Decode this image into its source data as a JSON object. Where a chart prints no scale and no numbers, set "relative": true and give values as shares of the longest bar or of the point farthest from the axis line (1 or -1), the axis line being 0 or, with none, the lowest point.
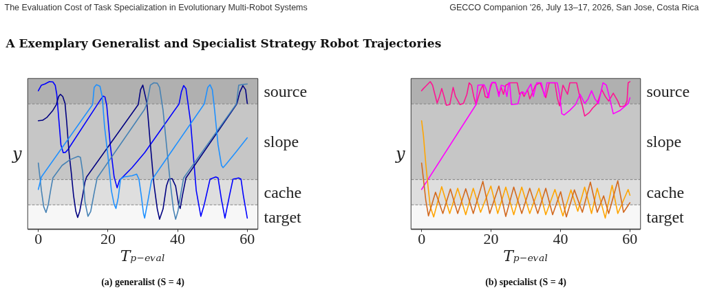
{
  "chart_data": [
    {
      "type": "line",
      "title": "(a) generalist (S = 4)",
      "xlabel": "Tₚ₋ₑᵥₐₗ",
      "ylabel": "y",
      "relative": true,
      "xlim": [
        -3,
        63
      ],
      "xticks": [
        0,
        20,
        40,
        60
      ],
      "annotations": [
        "The Evaluation Cost of Task Specialization in Evolutionary Multi-Robot Systems",
        "GECCO Companion '26, July 13–17, 2026, San Jose, Costa Rica",
        "A Exemplary Generalist and Specialist Strategy Robot Trajectories"
      ],
      "bands": [
        {
          "axis": "y",
          "from": 0.849,
          "to": 1.02,
          "label": "source",
          "color": "#b0b0b0"
        },
        {
          "axis": "y",
          "from": 0.336,
          "to": 0.849,
          "label": "slope",
          "color": "#c6c6c6"
        },
        {
          "axis": "y",
          "from": 0.165,
          "to": 0.336,
          "label": "cache",
          "color": "#dedede"
        },
        {
          "axis": "y",
          "from": 0,
          "to": 0.165,
          "label": "target",
          "color": "#f7f7f7"
        }
      ],
      "ref_lines": [
        {
          "axis": "y",
          "value": 0.849,
          "color": "#808080",
          "line_style": "dashed"
        },
        {
          "axis": "y",
          "value": 0.336,
          "color": "#808080",
          "line_style": "dashed"
        },
        {
          "axis": "y",
          "value": 0.165,
          "color": "#808080",
          "line_style": "dashed"
        }
      ],
      "series": [
        {
          "color": "#0000ff",
          "x": [
            0,
            0.89,
            1.88,
            2.54,
            3.2,
            4.18,
            4.84,
            5.3,
            5.83,
            6.49,
            7.15,
            7.81,
            8.46,
            18.02,
            18.68,
            19.14,
            19.66,
            20.65,
            21.77,
            22.63,
            23.29,
            24.28,
            26.91,
            30.53,
            35.16,
            40.42,
            41.07,
            41.73,
            42.39,
            43.71,
            45.35,
            46.67,
            47.66,
            49.31,
            50.96,
            51.61,
            52.6,
            53.59,
            54.91,
            55.9,
            57.54,
            58.2,
            58.86,
            60
          ],
          "values": [
            0.938,
            0.976,
            0.984,
            0.992,
            1.0,
            0.998,
            0.976,
            0.914,
            0.759,
            0.572,
            0.518,
            0.521,
            0.538,
            0.883,
            0.902,
            0.896,
            0.836,
            0.572,
            0.354,
            0.28,
            0.331,
            0.354,
            0.417,
            0.518,
            0.673,
            0.849,
            0.93,
            0.973,
            0.953,
            0.729,
            0.261,
            0.087,
            0.168,
            0.339,
            0.354,
            0.347,
            0.199,
            0.075,
            0.23,
            0.339,
            0.347,
            0.339,
            0.23,
            0.075
          ]
        },
        {
          "color": "#000080",
          "x": [
            0,
            1.22,
            2.54,
            4.18,
            5.17,
            5.83,
            6.36,
            7.02,
            7.67,
            8.14,
            8.79,
            9.45,
            10.11,
            10.77,
            11.3,
            11.89,
            12.75,
            13.41,
            13.87,
            28.69,
            29.35,
            30.01,
            31.19,
            32.18,
            33.18,
            34.16,
            34.82,
            35.82,
            36.79,
            37.45,
            38.44,
            39.43,
            40.28,
            40.74,
            41.4,
            42.39,
            57.01,
            57.87,
            58.73,
            59.52,
            60
          ],
          "values": [
            0.735,
            0.738,
            0.759,
            0.805,
            0.844,
            0.899,
            0.914,
            0.899,
            0.852,
            0.729,
            0.526,
            0.386,
            0.23,
            0.121,
            0.079,
            0.121,
            0.23,
            0.323,
            0.354,
            0.844,
            0.945,
            0.976,
            0.852,
            0.572,
            0.308,
            0.137,
            0.067,
            0.137,
            0.292,
            0.339,
            0.342,
            0.292,
            0.168,
            0.14,
            0.23,
            0.347,
            0.849,
            0.93,
            0.973,
            0.945,
            0.852
          ]
        },
        {
          "color": "#4682b4",
          "x": [
            0,
            0.89,
            1.55,
            2.21,
            2.87,
            3.52,
            4.18,
            6.82,
            9.12,
            11.43,
            12.09,
            12.75,
            13.41,
            14.26,
            15.05,
            16.04,
            16.9,
            30.53,
            31.19,
            32.18,
            33.18,
            34.16,
            34.82,
            35.82,
            36.79,
            37.78,
            38.77,
            39.43,
            40.09,
            40.74,
            41.73,
            56.88,
            57.54,
            58.86,
            60
          ],
          "values": [
            0.448,
            0.261,
            0.152,
            0.113,
            0.168,
            0.261,
            0.347,
            0.432,
            0.471,
            0.494,
            0.487,
            0.386,
            0.183,
            0.087,
            0.121,
            0.246,
            0.347,
            0.813,
            0.852,
            0.976,
            0.992,
            0.989,
            0.961,
            0.805,
            0.572,
            0.339,
            0.137,
            0.067,
            0.121,
            0.215,
            0.347,
            0.849,
            0.976,
            0.981,
            0.984
          ]
        },
        {
          "color": "#1e90ff",
          "x": [
            0,
            0.89,
            15.58,
            16.04,
            16.7,
            17.69,
            18.35,
            19.01,
            20,
            20.98,
            21.77,
            22.3,
            22.96,
            23.62,
            24.6,
            26.91,
            28.23,
            28.89,
            29.55,
            30.2,
            30.53,
            31.52,
            32.51,
            47.66,
            48.65,
            49.31,
            49.97,
            50.63,
            51.61,
            52.6,
            53.06,
            53.92,
            56.88,
            60
          ],
          "values": [
            0.269,
            0.354,
            0.844,
            0.961,
            0.979,
            0.969,
            0.899,
            0.697,
            0.494,
            0.261,
            0.168,
            0.14,
            0.215,
            0.339,
            0.354,
            0.362,
            0.373,
            0.339,
            0.23,
            0.106,
            0.075,
            0.199,
            0.331,
            0.849,
            0.961,
            0.979,
            0.945,
            0.805,
            0.572,
            0.432,
            0.417,
            0.44,
            0.526,
            0.619
          ]
        }
      ]
    },
    {
      "type": "line",
      "title": "(b) specialist (S = 4)",
      "xlabel": "Tₚ₋ₑᵥₐₗ",
      "ylabel": "y",
      "relative": true,
      "xlim": [
        -3,
        63
      ],
      "xticks": [
        0,
        20,
        40,
        60
      ],
      "bands": [
        {
          "axis": "y",
          "from": 0.849,
          "to": 1.02,
          "label": "source",
          "color": "#b0b0b0"
        },
        {
          "axis": "y",
          "from": 0.336,
          "to": 0.849,
          "label": "slope",
          "color": "#c6c6c6"
        },
        {
          "axis": "y",
          "from": 0.165,
          "to": 0.336,
          "label": "cache",
          "color": "#dedede"
        },
        {
          "axis": "y",
          "from": 0,
          "to": 0.165,
          "label": "target",
          "color": "#f7f7f7"
        }
      ],
      "ref_lines": [
        {
          "axis": "y",
          "value": 0.849,
          "color": "#808080",
          "line_style": "dashed"
        },
        {
          "axis": "y",
          "value": 0.336,
          "color": "#808080",
          "line_style": "dashed"
        },
        {
          "axis": "y",
          "value": 0.165,
          "color": "#808080",
          "line_style": "dashed"
        }
      ],
      "series": [
        {
          "color": "#ff1493",
          "x": [
            0,
            0.53,
            1.19,
            2.5,
            3.16,
            3.82,
            4.48,
            5.14,
            5.8,
            6.46,
            7.11,
            8.1,
            9.09,
            9.75,
            11.07,
            12.06,
            13.04,
            13.7,
            14.36,
            15.02,
            15.68,
            17,
            17.65,
            18.31,
            18.97,
            19.63,
            20.29,
            21.28,
            22.27,
            22.92,
            23.58,
            24.24,
            25.56,
            27.54,
            28.19,
            28.85,
            29.51,
            30.5,
            31.16,
            32.81,
            34.12,
            35.11,
            35.77,
            36.76,
            38.41,
            39.07,
            39.72,
            40.71,
            41.37,
            42.03,
            42.69,
            44.66,
            45.32,
            46.31,
            46.97,
            48.29,
            49.28,
            50.59,
            51.91,
            52.9,
            53.89,
            55.2,
            56.52,
            57.18,
            58.5,
            59.16,
            59.49,
            60
          ],
          "values": [
            0.938,
            0.953,
            0.969,
            1.0,
            0.976,
            0.914,
            0.855,
            0.899,
            0.953,
            0.899,
            0.84,
            0.844,
            0.961,
            0.899,
            0.844,
            0.852,
            0.914,
            0.992,
            0.976,
            0.899,
            0.844,
            0.945,
            0.976,
            0.899,
            0.891,
            0.945,
            0.992,
            0.992,
            0.914,
            0.961,
            0.914,
            0.976,
            0.992,
            0.992,
            0.914,
            0.93,
            0.899,
            0.945,
            0.883,
            0.976,
            0.992,
            0.93,
            0.891,
            0.992,
            0.992,
            0.891,
            0.836,
            0.976,
            0.945,
            0.914,
            0.992,
            0.992,
            0.922,
            0.836,
            0.767,
            0.79,
            0.821,
            0.852,
            0.945,
            0.899,
            0.868,
            0.922,
            0.868,
            0.829,
            0.836,
            0.868,
            0.992,
            1.0
          ]
        },
        {
          "color": "#ff00ff",
          "x": [
            0,
            15.68,
            16.21,
            17.98,
            18.64,
            19.3,
            19.83,
            20.29,
            21.28,
            22.27,
            22.92,
            23.91,
            24.57,
            25.1,
            25.36,
            25.89,
            27.73,
            28.52,
            29.18,
            29.84,
            30.5,
            31.49,
            32.15,
            33.14,
            34.45,
            35.44,
            36.1,
            39.07,
            39.72,
            40.38,
            41.04,
            42.69,
            44.33,
            45.65,
            46.97,
            47.96,
            48.95,
            49.93,
            50.92,
            52.24,
            53.23,
            54.22,
            55.2,
            57.18,
            59.49,
            60
          ],
          "values": [
            0.269,
            0.844,
            0.976,
            0.979,
            0.945,
            0.891,
            0.976,
            0.995,
            0.995,
            0.899,
            0.976,
            0.969,
            0.899,
            0.992,
            0.992,
            0.844,
            0.849,
            0.922,
            0.93,
            0.914,
            0.945,
            0.984,
            0.899,
            0.992,
            0.992,
            0.899,
            0.992,
            0.992,
            0.914,
            0.782,
            0.774,
            0.805,
            0.844,
            0.914,
            0.852,
            0.883,
            0.938,
            0.883,
            0.852,
            0.992,
            0.976,
            0.883,
            0.782,
            0.805,
            0.852,
            0.891
          ]
        },
        {
          "color": "#ffa500",
          "x": [
            0,
            0.53,
            1.19,
            1.84,
            2.5,
            3.48,
            5.79,
            8.1,
            10.4,
            12.71,
            14.88,
            16.99,
            19.95,
            21.93,
            24.24,
            26.54,
            28.85,
            31.15,
            33.79,
            35.76,
            38.4,
            40.7,
            43.01,
            44.99,
            46.96,
            48.94,
            50.59,
            52.89,
            54.87,
            56.51,
            59.48,
            60
          ],
          "values": [
            0.735,
            0.634,
            0.448,
            0.292,
            0.152,
            0.083,
            0.288,
            0.106,
            0.277,
            0.098,
            0.277,
            0.114,
            0.292,
            0.106,
            0.285,
            0.098,
            0.285,
            0.106,
            0.277,
            0.098,
            0.269,
            0.09,
            0.266,
            0.121,
            0.285,
            0.106,
            0.277,
            0.075,
            0.297,
            0.106,
            0.269,
            0.23
          ]
        },
        {
          "color": "#d2691e",
          "x": [
            0,
            0.53,
            1.19,
            1.97,
            4.01,
            6.12,
            8.29,
            10.4,
            12.71,
            14.88,
            17.65,
            19.62,
            22.26,
            24.24,
            26.54,
            28.85,
            31.15,
            33.46,
            35.76,
            37.74,
            40.05,
            41.69,
            44,
            46.3,
            48.61,
            50.59,
            52.43,
            53.88,
            56.51,
            58.16,
            60
          ],
          "values": [
            0.448,
            0.339,
            0.199,
            0.09,
            0.25,
            0.106,
            0.272,
            0.106,
            0.274,
            0.106,
            0.324,
            0.106,
            0.292,
            0.086,
            0.285,
            0.106,
            0.277,
            0.106,
            0.277,
            0.098,
            0.254,
            0.083,
            0.266,
            0.114,
            0.319,
            0.114,
            0.226,
            0.106,
            0.328,
            0.114,
            0.179
          ]
        }
      ]
    }
  ]
}
